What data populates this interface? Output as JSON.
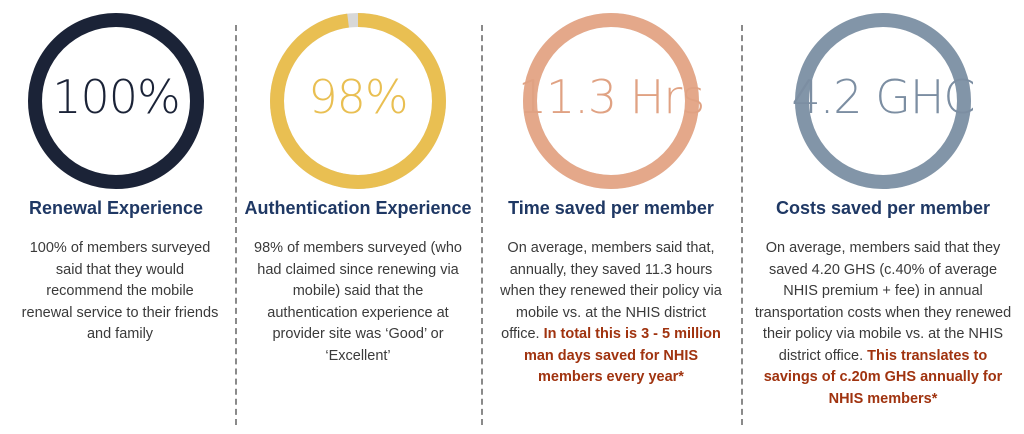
{
  "columns": [
    {
      "value": "100%",
      "percent": 100,
      "ring_color": "#1b2337",
      "value_color": "#1b2337",
      "heading": "Renewal Experience",
      "body": "100% of members surveyed said that they would recommend the mobile renewal service to their friends and family",
      "highlight": ""
    },
    {
      "value": "98%",
      "percent": 98,
      "ring_color": "#e9bf52",
      "value_color": "#e9bf52",
      "heading": "Authentication Experience",
      "body": "98% of members surveyed (who had claimed since renewing via mobile) said that the authentication experience at provider site was ‘Good’ or ‘Excellent’",
      "highlight": ""
    },
    {
      "value": "11.3 Hrs",
      "percent": 100,
      "ring_color": "#e4a88a",
      "value_color": "#e0a283",
      "heading": "Time saved per member",
      "body": "On average, members said that, annually, they saved 11.3 hours when they renewed their policy via mobile vs. at the NHIS district office.",
      "highlight": "In total this is 3 - 5 million man days saved for NHIS members every year*"
    },
    {
      "value": "4.2 GHC",
      "percent": 100,
      "ring_color": "#8295a8",
      "value_color": "#7c8ea2",
      "heading": "Costs saved per member",
      "body": "On average, members said that they saved 4.20 GHS (c.40% of average NHIS premium + fee) in annual transportation costs when they renewed their policy via mobile vs. at the NHIS district office.",
      "highlight": "This translates to savings of c.20m GHS annually for NHIS members*"
    }
  ]
}
